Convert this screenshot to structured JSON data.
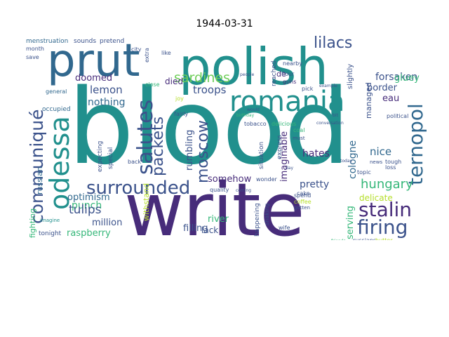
{
  "title": "1944-03-31",
  "palette": {
    "dark_purple": "#472c7a",
    "indigo": "#3b528b",
    "blue": "#31688e",
    "teal": "#21908d",
    "green": "#35b779",
    "lime": "#6ece58",
    "yellow_green": "#b5de2b",
    "yellow": "#d8e219"
  },
  "words": {
    "blood": "blood",
    "write": "write",
    "polish": "polish",
    "prut": "prut",
    "romania": "romania",
    "odessa": "odessa",
    "communique": "communiqué",
    "surrounded": "surrounded",
    "salutes": "salutes",
    "packets": "packets",
    "moscow": "moscow",
    "ternopol": "ternopol",
    "stalin": "stalin",
    "firing": "firing",
    "lilacs": "lilacs",
    "sardines": "sardines",
    "lemon": "lemon",
    "hungary": "hungary",
    "tulips": "tulips",
    "optimism": "optimism",
    "forsaken": "forsaken",
    "border": "border",
    "eau": "eau",
    "gluey": "gluey",
    "doomed": "doomed",
    "troops": "troops",
    "died": "died",
    "nothing": "nothing",
    "punch": "punch",
    "nice": "nice",
    "hates": "hates",
    "pretty": "pretty",
    "delicate": "delicate",
    "cologne": "cologne",
    "imaginable": "imaginable",
    "rumbling": "rumbling",
    "somehow": "somehow",
    "filling": "filling",
    "river": "river",
    "lack": "lack",
    "million": "million",
    "raspberry": "raspberry",
    "fighting": "fighting",
    "russian": "russian",
    "withstand": "withstand",
    "serving": "serving",
    "managed": "managed",
    "menstruation": "menstruation",
    "sounds": "sounds",
    "pretend": "pretend",
    "month": "month",
    "save": "save",
    "general": "general",
    "occupied": "occupied",
    "tonight": "tonight",
    "imagine": "imagine",
    "tobacco": "tobacco",
    "delicious": "delicious",
    "flour": "flour",
    "guns": "guns",
    "pick": "pick",
    "coal": "coal",
    "must": "must",
    "cake": "cake",
    "spend": "spend",
    "coffee": "coffee",
    "gotten": "gotten",
    "wife": "wife",
    "quality": "quality",
    "wonder": "wonder",
    "topic": "topic",
    "loss": "loss",
    "tough": "tough",
    "russians": "russians",
    "butter": "butter",
    "political": "political",
    "slightly": "slightly",
    "nearby": "nearby",
    "reached": "reached",
    "express": "express",
    "situation": "situation",
    "close": "close",
    "like": "like",
    "city": "city",
    "joy": "joy",
    "fairly": "fairly",
    "special": "special",
    "expecting": "expecting",
    "back": "back",
    "happening": "happening",
    "shaking": "shaking",
    "de": "de",
    "news": "news",
    "extra": "extra",
    "conversation": "conversation",
    "example": "example",
    "people": "people",
    "day": "day",
    "would": "would",
    "birthday": "birthday",
    "bit": "bit",
    "today": "today",
    "friends": "friends",
    "coming": "coming"
  }
}
